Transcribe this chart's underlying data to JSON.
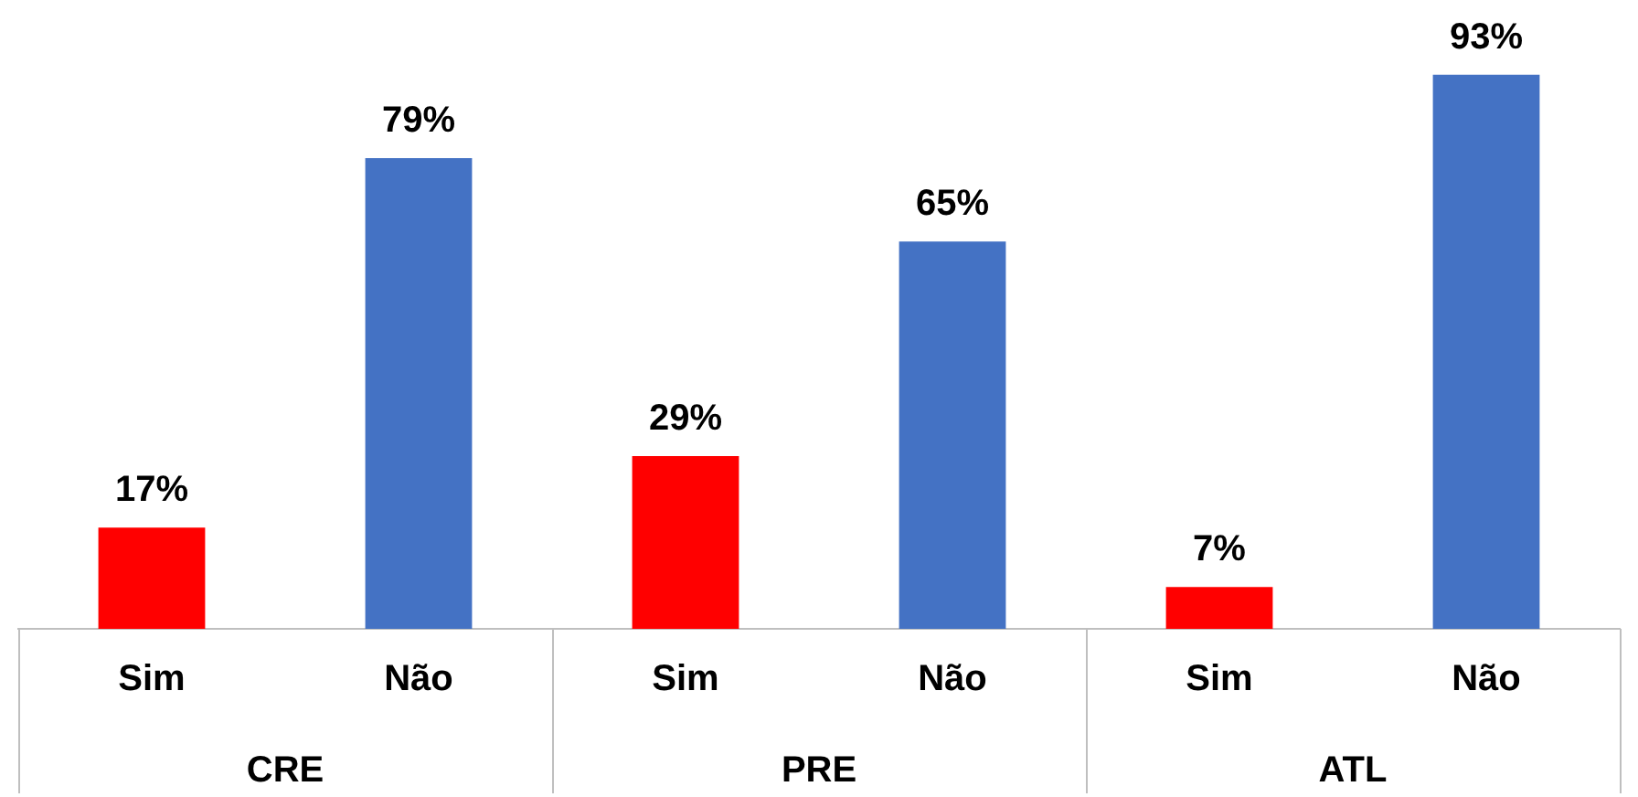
{
  "chart_data": {
    "type": "bar",
    "categories": [
      "Sim",
      "Não",
      "Sim",
      "Não",
      "Sim",
      "Não"
    ],
    "values": [
      17,
      79,
      29,
      65,
      7,
      93
    ],
    "colors": [
      "#ff0000",
      "#4472c4",
      "#ff0000",
      "#4472c4",
      "#ff0000",
      "#4472c4"
    ],
    "value_labels": [
      "17%",
      "79%",
      "29%",
      "65%",
      "7%",
      "93%"
    ],
    "annotations": [
      "CRE",
      "PRE",
      "ATL"
    ],
    "grid": false,
    "legend": false
  }
}
